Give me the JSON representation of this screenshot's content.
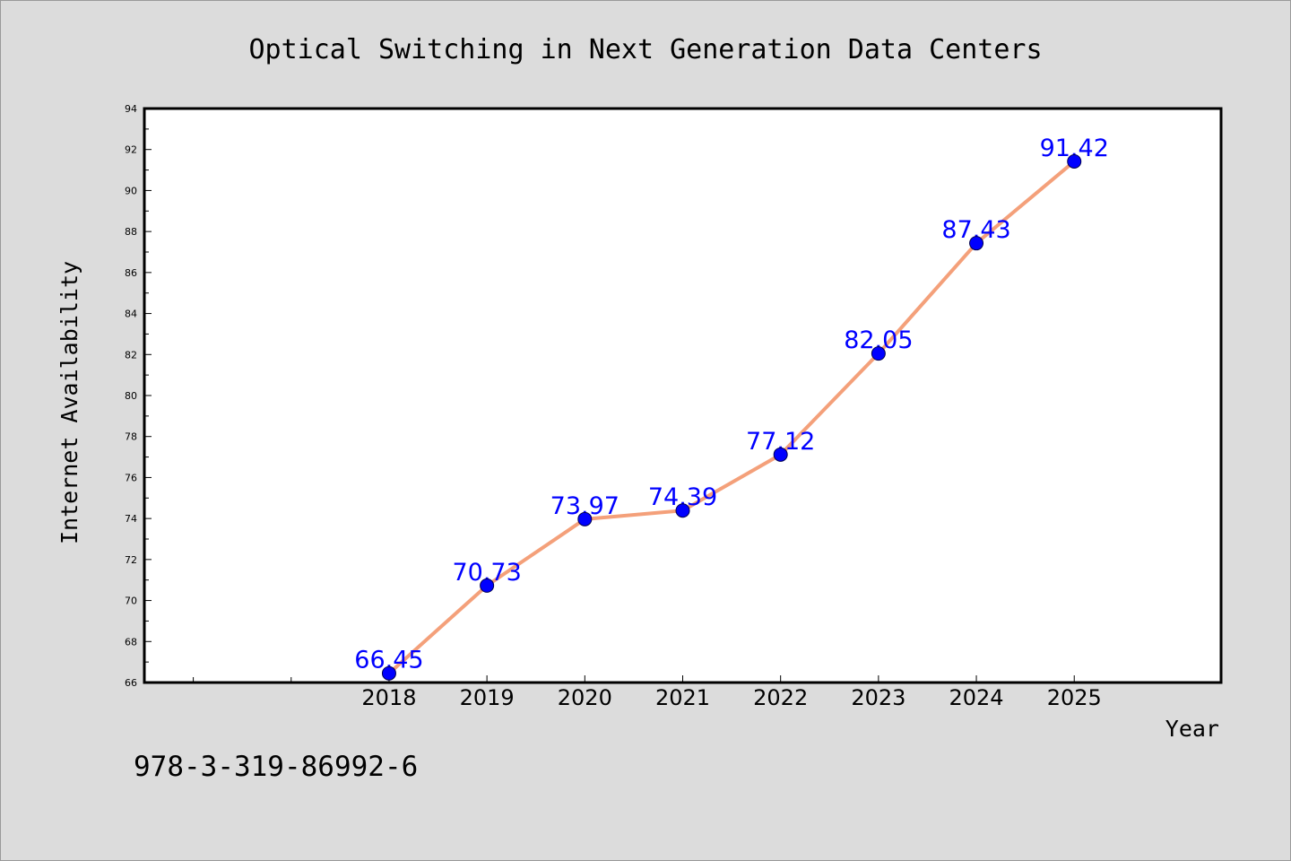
{
  "chart_data": {
    "type": "line",
    "title": "Optical Switching in Next Generation Data Centers",
    "xlabel": "Year",
    "ylabel": "Internet Availability",
    "categories": [
      "2018",
      "2019",
      "2020",
      "2021",
      "2022",
      "2023",
      "2024",
      "2025"
    ],
    "x_positions": [
      2018,
      2019,
      2020,
      2021,
      2022,
      2023,
      2024,
      2025
    ],
    "series": [
      {
        "values": [
          66.45,
          70.73,
          73.97,
          74.39,
          77.12,
          82.05,
          87.43,
          91.42
        ],
        "data_labels": [
          "66.45",
          "70.73",
          "73.97",
          "74.39",
          "77.12",
          "82.05",
          "87.43",
          "91.42"
        ],
        "line_color": "#f4a07a",
        "marker_color": "#0000ff"
      }
    ],
    "xlim": [
      2015.5,
      2026.5
    ],
    "ylim": [
      66,
      94
    ],
    "yticks": [
      66,
      68,
      70,
      72,
      74,
      76,
      78,
      80,
      82,
      84,
      86,
      88,
      90,
      92,
      94
    ],
    "ytick_labels": [
      "66",
      "68",
      "70",
      "72",
      "74",
      "76",
      "78",
      "80",
      "82",
      "84",
      "86",
      "88",
      "90",
      "92",
      "94"
    ],
    "minor_x_ticks": [
      2016,
      2017
    ],
    "grid": false,
    "legend": "none",
    "colors": {
      "background": "#dcdcdc",
      "plot_background": "#ffffff",
      "line": "#f4a07a",
      "marker": "#0000ff",
      "data_label": "#0000ff"
    }
  },
  "footer": {
    "isbn": "978-3-319-86992-6"
  }
}
